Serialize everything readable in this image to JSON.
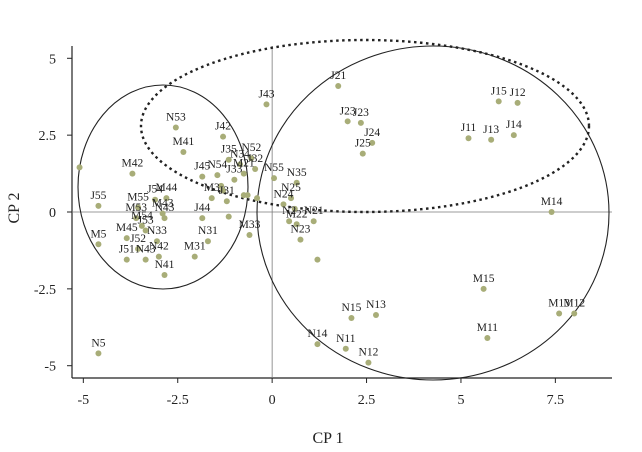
{
  "chart_data": {
    "type": "scatter",
    "title": "",
    "xlabel": "CP 1",
    "ylabel": "CP 2",
    "xlim": [
      -5.3,
      9
    ],
    "ylim": [
      -5.4,
      5.4
    ],
    "xticks": [
      {
        "value": -5,
        "label": "-5"
      },
      {
        "value": -2.5,
        "label": "-2.5"
      },
      {
        "value": 0,
        "label": "0"
      },
      {
        "value": 2.5,
        "label": "2.5"
      },
      {
        "value": 5,
        "label": "5"
      },
      {
        "value": 7.5,
        "label": "7.5"
      }
    ],
    "yticks": [
      {
        "value": 5,
        "label": "5"
      },
      {
        "value": 2.5,
        "label": "2.5"
      },
      {
        "value": 0,
        "label": "0"
      },
      {
        "value": -2.5,
        "label": "-2.5"
      },
      {
        "value": -5,
        "label": "-5"
      }
    ],
    "marker_color": "#a8ad78",
    "zero_lines": true,
    "grid": false,
    "points": [
      {
        "label": "J21",
        "x": 1.75,
        "y": 4.1
      },
      {
        "label": "J43",
        "x": -0.15,
        "y": 3.5
      },
      {
        "label": "J15",
        "x": 6.0,
        "y": 3.6
      },
      {
        "label": "J12",
        "x": 6.5,
        "y": 3.55
      },
      {
        "label": "J23",
        "x": 2.0,
        "y": 2.95
      },
      {
        "label": "J23",
        "x": 2.35,
        "y": 2.9
      },
      {
        "label": "J24",
        "x": 2.65,
        "y": 2.25
      },
      {
        "label": "J25",
        "x": 2.4,
        "y": 1.9
      },
      {
        "label": "J11",
        "x": 5.2,
        "y": 2.4
      },
      {
        "label": "J13",
        "x": 5.8,
        "y": 2.35
      },
      {
        "label": "J14",
        "x": 6.4,
        "y": 2.5
      },
      {
        "label": "N53",
        "x": -2.55,
        "y": 2.75
      },
      {
        "label": "J42",
        "x": -1.3,
        "y": 2.45
      },
      {
        "label": "M41",
        "x": -2.35,
        "y": 1.95
      },
      {
        "label": "",
        "x": -5.1,
        "y": 1.45
      },
      {
        "label": "M42",
        "x": -3.7,
        "y": 1.25
      },
      {
        "label": "N52",
        "x": -0.55,
        "y": 1.75
      },
      {
        "label": "J35",
        "x": -1.15,
        "y": 1.7
      },
      {
        "label": "N34",
        "x": -0.85,
        "y": 1.55
      },
      {
        "label": "J32",
        "x": -0.45,
        "y": 1.4
      },
      {
        "label": "J45",
        "x": -1.85,
        "y": 1.15
      },
      {
        "label": "N54",
        "x": -1.45,
        "y": 1.2
      },
      {
        "label": "M21",
        "x": -0.75,
        "y": 1.25
      },
      {
        "label": "J33",
        "x": -1.0,
        "y": 1.05
      },
      {
        "label": "N55",
        "x": 0.05,
        "y": 1.1
      },
      {
        "label": "N35",
        "x": 0.65,
        "y": 0.95
      },
      {
        "label": "",
        "x": -1.35,
        "y": 0.85
      },
      {
        "label": "",
        "x": -1.3,
        "y": 0.7
      },
      {
        "label": "J55",
        "x": -4.6,
        "y": 0.2
      },
      {
        "label": "J54",
        "x": -3.1,
        "y": 0.4
      },
      {
        "label": "M44",
        "x": -2.8,
        "y": 0.45
      },
      {
        "label": "M55",
        "x": -3.55,
        "y": 0.15
      },
      {
        "label": "M43",
        "x": -2.9,
        "y": -0.05
      },
      {
        "label": "M53",
        "x": -3.6,
        "y": -0.2
      },
      {
        "label": "M54",
        "x": -3.45,
        "y": -0.45
      },
      {
        "label": "J53",
        "x": -3.35,
        "y": -0.6
      },
      {
        "label": "N43",
        "x": -2.85,
        "y": -0.2
      },
      {
        "label": "M3",
        "x": -1.6,
        "y": 0.45
      },
      {
        "label": "J31",
        "x": -1.2,
        "y": 0.35
      },
      {
        "label": "",
        "x": -0.75,
        "y": 0.55
      },
      {
        "label": "",
        "x": -0.65,
        "y": 0.55
      },
      {
        "label": "",
        "x": -0.4,
        "y": 0.45
      },
      {
        "label": "N25",
        "x": 0.5,
        "y": 0.45
      },
      {
        "label": "N24",
        "x": 0.3,
        "y": 0.25
      },
      {
        "label": "",
        "x": 0.6,
        "y": 0.1
      },
      {
        "label": "J44",
        "x": -1.85,
        "y": -0.2
      },
      {
        "label": "N2",
        "x": 0.45,
        "y": -0.3
      },
      {
        "label": "M22",
        "x": 0.65,
        "y": -0.4
      },
      {
        "label": "N21",
        "x": 1.1,
        "y": -0.3
      },
      {
        "label": "",
        "x": -1.15,
        "y": -0.15
      },
      {
        "label": "M45",
        "x": -3.85,
        "y": -0.85
      },
      {
        "label": "N33",
        "x": -3.05,
        "y": -0.95
      },
      {
        "label": "N31",
        "x": -1.7,
        "y": -0.95
      },
      {
        "label": "M33",
        "x": -0.6,
        "y": -0.75
      },
      {
        "label": "N23",
        "x": 0.75,
        "y": -0.9
      },
      {
        "label": "M5",
        "x": -4.6,
        "y": -1.05
      },
      {
        "label": "J51",
        "x": -3.85,
        "y": -1.55
      },
      {
        "label": "N43",
        "x": -3.35,
        "y": -1.55
      },
      {
        "label": "J52",
        "x": -3.55,
        "y": -1.2
      },
      {
        "label": "N42",
        "x": -3.0,
        "y": -1.45
      },
      {
        "label": "M31",
        "x": -2.05,
        "y": -1.45
      },
      {
        "label": "N41",
        "x": -2.85,
        "y": -2.05
      },
      {
        "label": "",
        "x": 1.2,
        "y": -1.55
      },
      {
        "label": "M14",
        "x": 7.4,
        "y": 0.0
      },
      {
        "label": "M15",
        "x": 5.6,
        "y": -2.5
      },
      {
        "label": "M13",
        "x": 7.6,
        "y": -3.3
      },
      {
        "label": "M12",
        "x": 8.0,
        "y": -3.3
      },
      {
        "label": "N15",
        "x": 2.1,
        "y": -3.45
      },
      {
        "label": "N13",
        "x": 2.75,
        "y": -3.35
      },
      {
        "label": "M11",
        "x": 5.7,
        "y": -4.1
      },
      {
        "label": "N14",
        "x": 1.2,
        "y": -4.3
      },
      {
        "label": "N11",
        "x": 1.95,
        "y": -4.45
      },
      {
        "label": "N12",
        "x": 2.55,
        "y": -4.9
      },
      {
        "label": "N5",
        "x": -4.6,
        "y": -4.6
      }
    ]
  }
}
